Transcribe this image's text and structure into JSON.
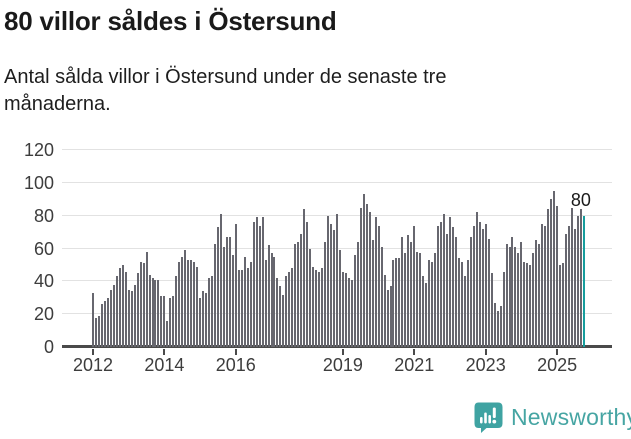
{
  "header": {
    "title": "80 villor såldes i Östersund",
    "subtitle": "Antal sålda villor i Östersund under de senaste tre månaderna."
  },
  "annotation": {
    "last_value_label": "80"
  },
  "branding": {
    "name": "Newsworthy",
    "icon": "newsworthy-barchart-bubble-icon"
  },
  "colors": {
    "bar": "#67676f",
    "highlight": "#169d9d",
    "gridline": "#e2e2e2",
    "axis": "#4a4a4a",
    "logo_teal": "#46a5a3",
    "text": "#1a1a1a"
  },
  "chart_data": {
    "type": "bar",
    "title": "80 villor såldes i Östersund",
    "subtitle": "Antal sålda villor i Östersund under de senaste tre månaderna.",
    "xlabel": "",
    "ylabel": "",
    "ylim": [
      0,
      120
    ],
    "grid": "horizontal",
    "y_ticks": [
      0,
      20,
      40,
      60,
      80,
      100,
      120
    ],
    "x_ticks": [
      {
        "label": "2012",
        "month_index": 0
      },
      {
        "label": "2014",
        "month_index": 24
      },
      {
        "label": "2016",
        "month_index": 48
      },
      {
        "label": "2019",
        "month_index": 84
      },
      {
        "label": "2021",
        "month_index": 108
      },
      {
        "label": "2023",
        "month_index": 132
      },
      {
        "label": "2025",
        "month_index": 156
      }
    ],
    "start_month": "2012-01",
    "end_month": "2025-10",
    "highlight_last_bar": true,
    "highlight_value": 80,
    "values": [
      33,
      18,
      19,
      26,
      28,
      30,
      35,
      38,
      43,
      48,
      50,
      46,
      35,
      34,
      38,
      45,
      52,
      51,
      58,
      44,
      42,
      41,
      41,
      31,
      31,
      16,
      30,
      31,
      43,
      52,
      55,
      59,
      53,
      53,
      52,
      49,
      30,
      34,
      33,
      42,
      43,
      63,
      73,
      81,
      61,
      67,
      67,
      56,
      75,
      47,
      47,
      55,
      48,
      52,
      76,
      79,
      74,
      79,
      53,
      62,
      57,
      55,
      42,
      37,
      32,
      43,
      46,
      48,
      63,
      64,
      69,
      84,
      76,
      60,
      49,
      47,
      46,
      48,
      64,
      80,
      75,
      71,
      81,
      59,
      46,
      45,
      42,
      41,
      56,
      64,
      85,
      93,
      87,
      82,
      65,
      79,
      74,
      61,
      44,
      35,
      37,
      53,
      54,
      54,
      67,
      57,
      68,
      64,
      74,
      58,
      57,
      43,
      39,
      53,
      52,
      57,
      74,
      76,
      81,
      69,
      79,
      73,
      67,
      54,
      52,
      43,
      53,
      67,
      74,
      82,
      76,
      72,
      75,
      66,
      45,
      27,
      22,
      25,
      46,
      63,
      61,
      67,
      61,
      57,
      64,
      52,
      51,
      50,
      57,
      65,
      63,
      75,
      74,
      84,
      90,
      95,
      86,
      50,
      51,
      69,
      74,
      85,
      72,
      80,
      84,
      80
    ]
  }
}
